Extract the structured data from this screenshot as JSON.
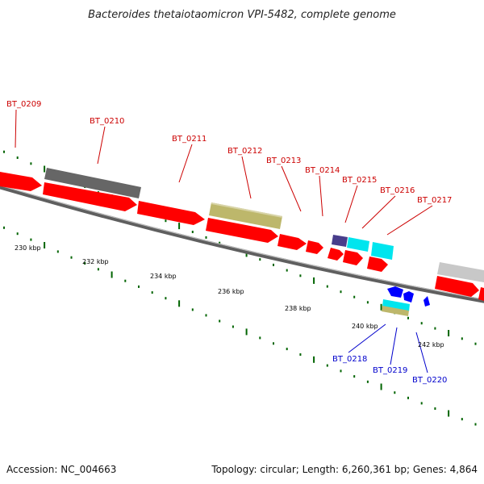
{
  "title": "Bacteroides thetaiotaomicron VPI-5482, complete genome",
  "footer": {
    "accession": "Accession: NC_004663",
    "topology": "Topology: circular; Length: 6,260,361 bp; Genes: 4,864"
  },
  "scale_labels": [
    "230 kbp",
    "232 kbp",
    "234 kbp",
    "236 kbp",
    "238 kbp",
    "240 kbp",
    "242 kbp"
  ],
  "gene_labels_top": [
    "BT_0209",
    "BT_0210",
    "BT_0211",
    "BT_0212",
    "BT_0213",
    "BT_0214",
    "BT_0215",
    "BT_0216",
    "BT_0217"
  ],
  "gene_labels_bottom": [
    "BT_0218",
    "BT_0219",
    "BT_0220"
  ],
  "colors": {
    "forward_label": "#cc0000",
    "reverse_label": "#0000cc",
    "cds": "#ff0000",
    "gene": "#666666",
    "trna": "#00e5ee",
    "rrna": "#bdb76b",
    "misc": "#483d8b",
    "reverse_feature": "#0000ff",
    "backbone": "#666666",
    "tick": "#006400"
  }
}
